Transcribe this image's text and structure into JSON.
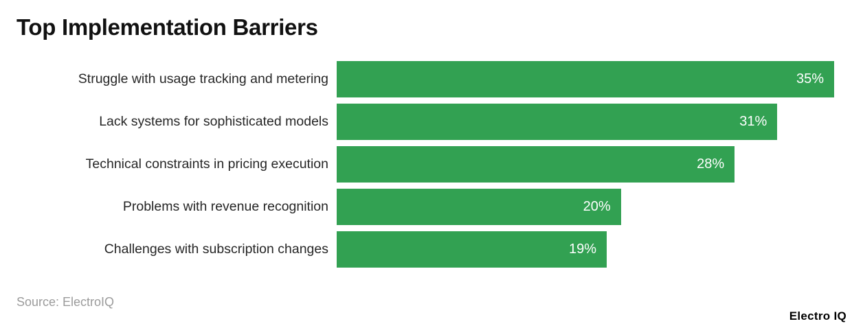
{
  "title": "Top Implementation Barriers",
  "footer": {
    "source": "Source: ElectroIQ",
    "brand": "Electro IQ"
  },
  "colors": {
    "bar_green": "#32a152",
    "value_text": "#ffffff",
    "title_text": "#111111",
    "label_text": "#262626",
    "source_text": "#9b9b9b",
    "background": "#ffffff"
  },
  "chart_data": {
    "type": "bar",
    "orientation": "horizontal",
    "title": "Top Implementation Barriers",
    "categories": [
      "Struggle with usage tracking and metering",
      "Lack systems for sophisticated models",
      "Technical constraints in pricing execution",
      "Problems with revenue recognition",
      "Challenges with subscription changes"
    ],
    "values": [
      35,
      31,
      28,
      20,
      19
    ],
    "value_labels": [
      "35%",
      "31%",
      "28%",
      "20%",
      "19%"
    ],
    "unit": "%",
    "xlim": [
      0,
      35
    ],
    "grid": false,
    "legend": false,
    "bar_color": "#32a152",
    "value_label_position": "inside-end"
  }
}
